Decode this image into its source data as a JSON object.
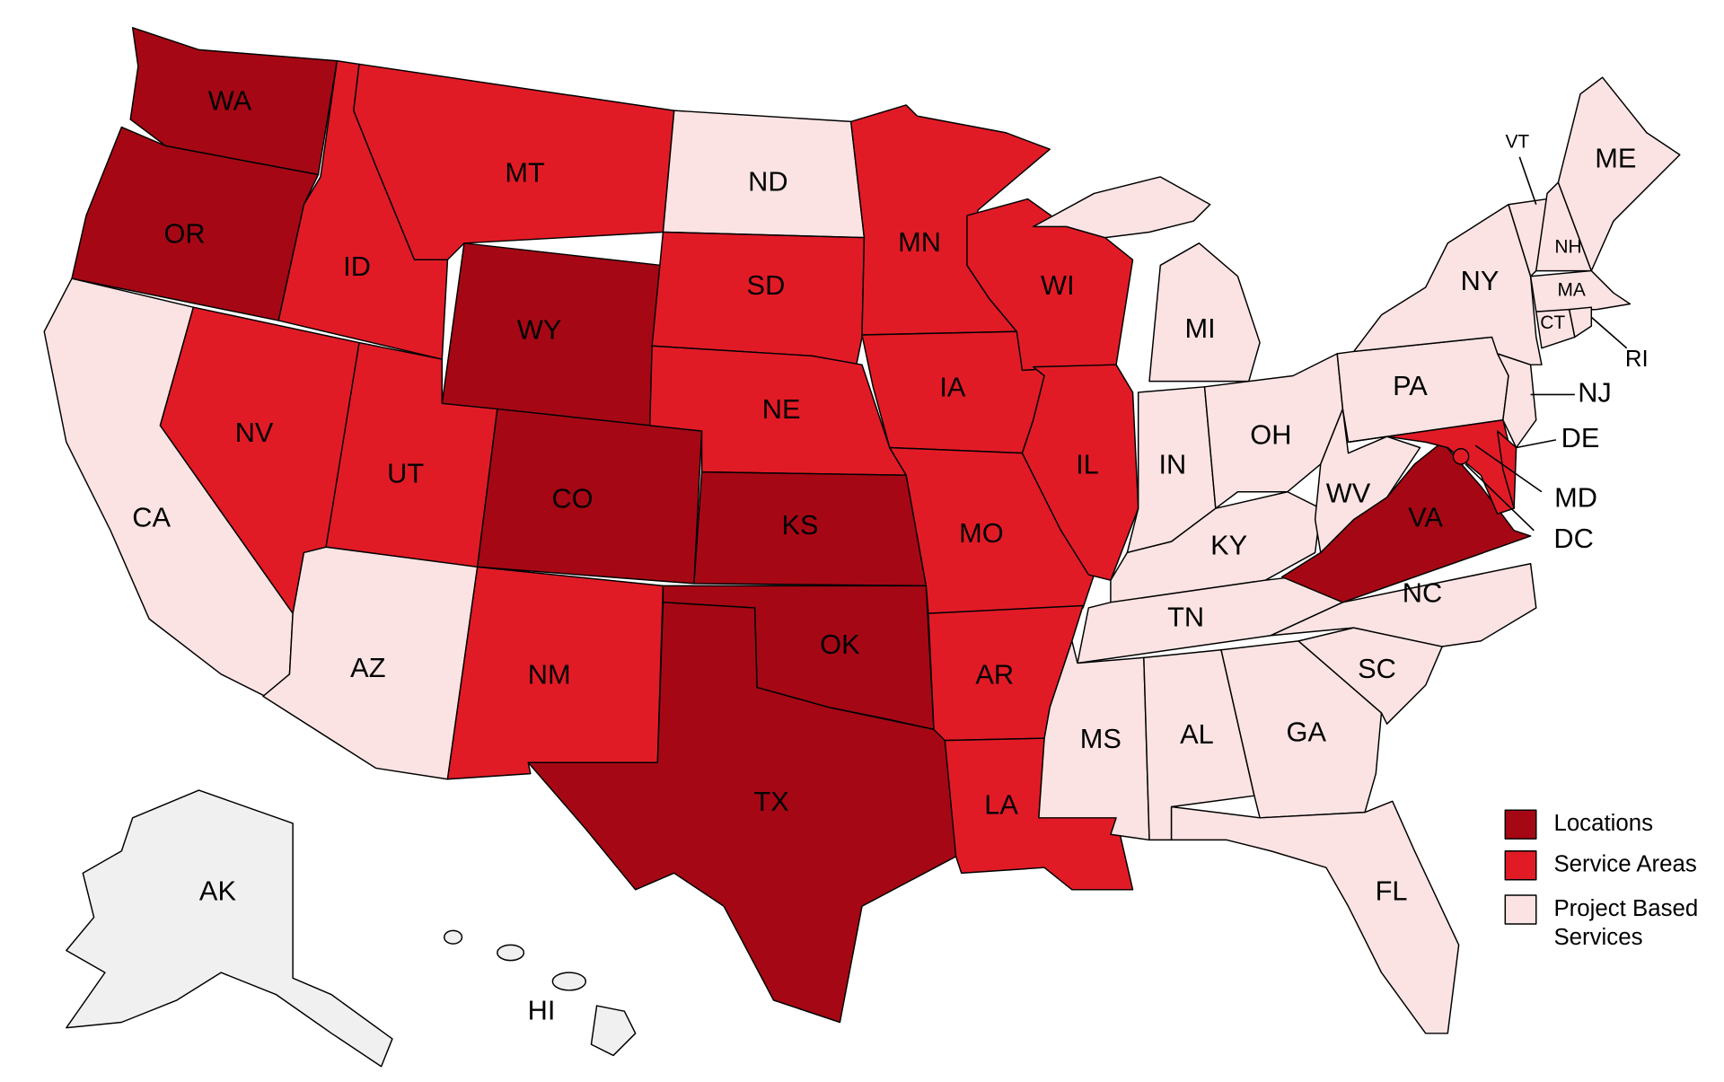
{
  "colors": {
    "locations": "#a50814",
    "service_areas": "#e11b26",
    "project_based": "#fbe3e3",
    "not_covered": "#f0f0f0"
  },
  "legend": [
    {
      "key": "locations",
      "label": "Locations"
    },
    {
      "key": "service_areas",
      "label": "Service Areas"
    },
    {
      "key": "project_based",
      "label": "Project Based",
      "label2": "Services"
    }
  ],
  "states": {
    "WA": "locations",
    "OR": "locations",
    "WY": "locations",
    "CO": "locations",
    "KS": "locations",
    "OK": "locations",
    "TX": "locations",
    "VA": "locations",
    "ID": "service_areas",
    "MT": "service_areas",
    "NV": "service_areas",
    "UT": "service_areas",
    "NM": "service_areas",
    "SD": "service_areas",
    "NE": "service_areas",
    "MN": "service_areas",
    "IA": "service_areas",
    "MO": "service_areas",
    "AR": "service_areas",
    "LA": "service_areas",
    "WI": "service_areas",
    "IL": "service_areas",
    "MD": "service_areas",
    "DE": "service_areas",
    "DC": "service_areas",
    "CA": "project_based",
    "AZ": "project_based",
    "ND": "project_based",
    "MI": "project_based",
    "IN": "project_based",
    "OH": "project_based",
    "KY": "project_based",
    "TN": "project_based",
    "MS": "project_based",
    "AL": "project_based",
    "GA": "project_based",
    "FL": "project_based",
    "SC": "project_based",
    "NC": "project_based",
    "WV": "project_based",
    "PA": "project_based",
    "NJ": "project_based",
    "NY": "project_based",
    "VT": "project_based",
    "NH": "project_based",
    "ME": "project_based",
    "MA": "project_based",
    "CT": "project_based",
    "RI": "project_based",
    "AK": "not_covered",
    "HI": "not_covered"
  },
  "labels": {
    "WA": "WA",
    "OR": "OR",
    "CA": "CA",
    "NV": "NV",
    "ID": "ID",
    "MT": "MT",
    "WY": "WY",
    "UT": "UT",
    "AZ": "AZ",
    "CO": "CO",
    "NM": "NM",
    "ND": "ND",
    "SD": "SD",
    "NE": "NE",
    "KS": "KS",
    "OK": "OK",
    "TX": "TX",
    "MN": "MN",
    "IA": "IA",
    "MO": "MO",
    "AR": "AR",
    "LA": "LA",
    "WI": "WI",
    "IL": "IL",
    "MI": "MI",
    "IN": "IN",
    "OH": "OH",
    "KY": "KY",
    "TN": "TN",
    "MS": "MS",
    "AL": "AL",
    "GA": "GA",
    "FL": "FL",
    "SC": "SC",
    "NC": "NC",
    "VA": "VA",
    "WV": "WV",
    "PA": "PA",
    "MD": "MD",
    "DE": "DE",
    "DC": "DC",
    "NJ": "NJ",
    "NY": "NY",
    "VT": "VT",
    "NH": "NH",
    "ME": "ME",
    "MA": "MA",
    "CT": "CT",
    "RI": "RI",
    "AK": "AK",
    "HI": "HI"
  }
}
